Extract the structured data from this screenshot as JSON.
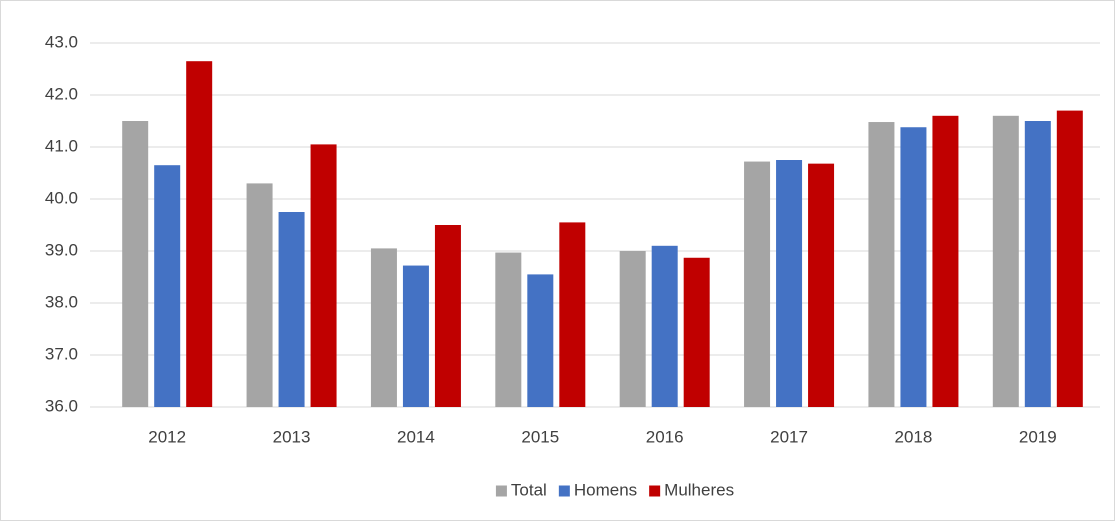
{
  "chart_data": {
    "type": "bar",
    "categories": [
      "2012",
      "2013",
      "2014",
      "2015",
      "2016",
      "2017",
      "2018",
      "2019"
    ],
    "series": [
      {
        "name": "Total",
        "color": "#a5a5a5",
        "values": [
          41.5,
          40.3,
          39.05,
          38.97,
          39.0,
          40.72,
          41.48,
          41.6
        ]
      },
      {
        "name": "Homens",
        "color": "#4472c4",
        "values": [
          40.65,
          39.75,
          38.72,
          38.55,
          39.1,
          40.75,
          41.38,
          41.5
        ]
      },
      {
        "name": "Mulheres",
        "color": "#c00000",
        "values": [
          42.65,
          41.05,
          39.5,
          39.55,
          38.87,
          40.68,
          41.6,
          41.7
        ]
      }
    ],
    "ylim": [
      36,
      43
    ],
    "yticks": [
      {
        "value": 36,
        "label": "36.0"
      },
      {
        "value": 37,
        "label": "37.0"
      },
      {
        "value": 38,
        "label": "38.0"
      },
      {
        "value": 39,
        "label": "39.0"
      },
      {
        "value": 40,
        "label": "40.0"
      },
      {
        "value": 41,
        "label": "41.0"
      },
      {
        "value": 42,
        "label": "42.0"
      },
      {
        "value": 43,
        "label": "43.0"
      }
    ],
    "grid": true,
    "legend": "bottom"
  }
}
